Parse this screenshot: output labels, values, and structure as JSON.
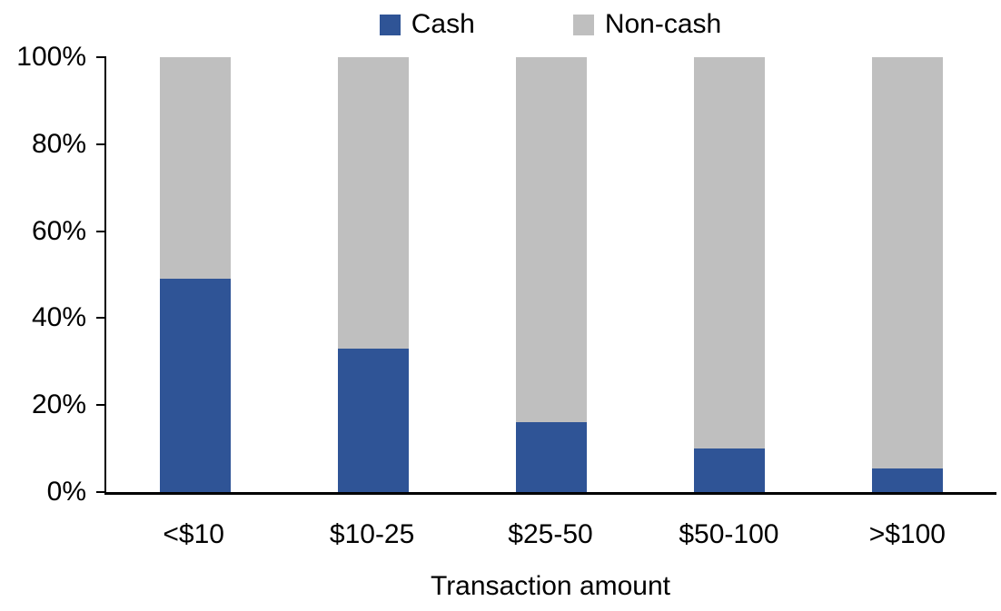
{
  "chart_data": {
    "type": "bar",
    "stacked": true,
    "stacked_mode": "percent",
    "title": "",
    "xlabel": "Transaction amount",
    "ylabel": "",
    "ylim": [
      0,
      100
    ],
    "grid": false,
    "legend_position": "top-center",
    "categories": [
      "<$10",
      "$10-25",
      "$25-50",
      "$50-100",
      ">$100"
    ],
    "series": [
      {
        "name": "Cash",
        "color": "#2F5496",
        "values": [
          49,
          33,
          16,
          10,
          5.5
        ]
      },
      {
        "name": "Non-cash",
        "color": "#BFBFBF",
        "values": [
          51,
          67,
          84,
          90,
          94.5
        ]
      }
    ],
    "yticks": [
      {
        "value": 0,
        "label": "0%"
      },
      {
        "value": 20,
        "label": "20%"
      },
      {
        "value": 40,
        "label": "40%"
      },
      {
        "value": 60,
        "label": "60%"
      },
      {
        "value": 80,
        "label": "80%"
      },
      {
        "value": 100,
        "label": "100%"
      }
    ],
    "axis_color": "#000000",
    "text_color": "#000000"
  }
}
